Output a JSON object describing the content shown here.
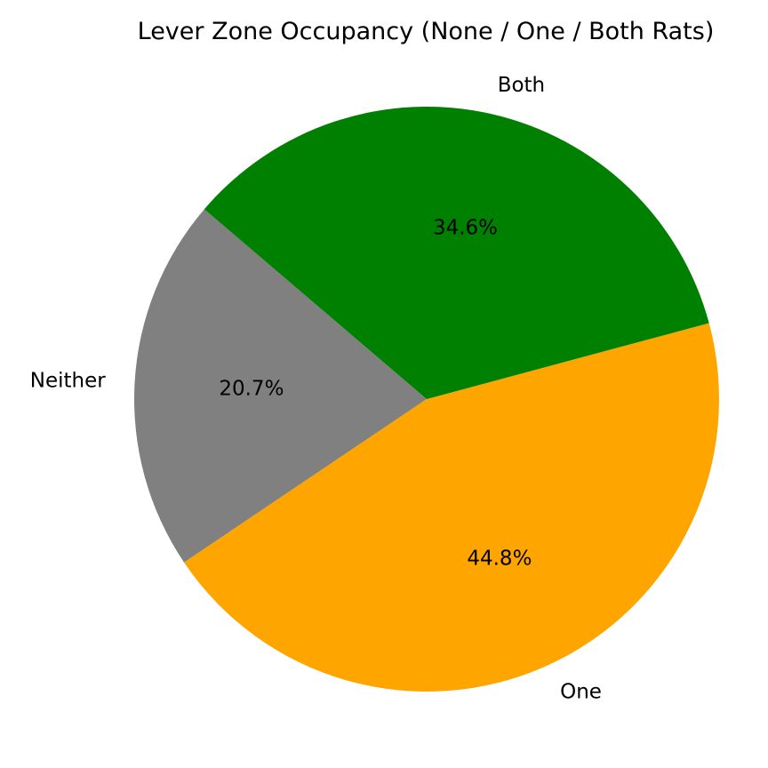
{
  "chart_data": {
    "type": "pie",
    "title": "Lever Zone Occupancy (None / One / Both Rats)",
    "slices": [
      {
        "label": "Neither",
        "value": 20.7,
        "pct_label": "20.7%",
        "color": "#808080"
      },
      {
        "label": "One",
        "value": 44.8,
        "pct_label": "44.8%",
        "color": "#ffa500"
      },
      {
        "label": "Both",
        "value": 34.6,
        "pct_label": "34.6%",
        "color": "#008000"
      }
    ]
  }
}
